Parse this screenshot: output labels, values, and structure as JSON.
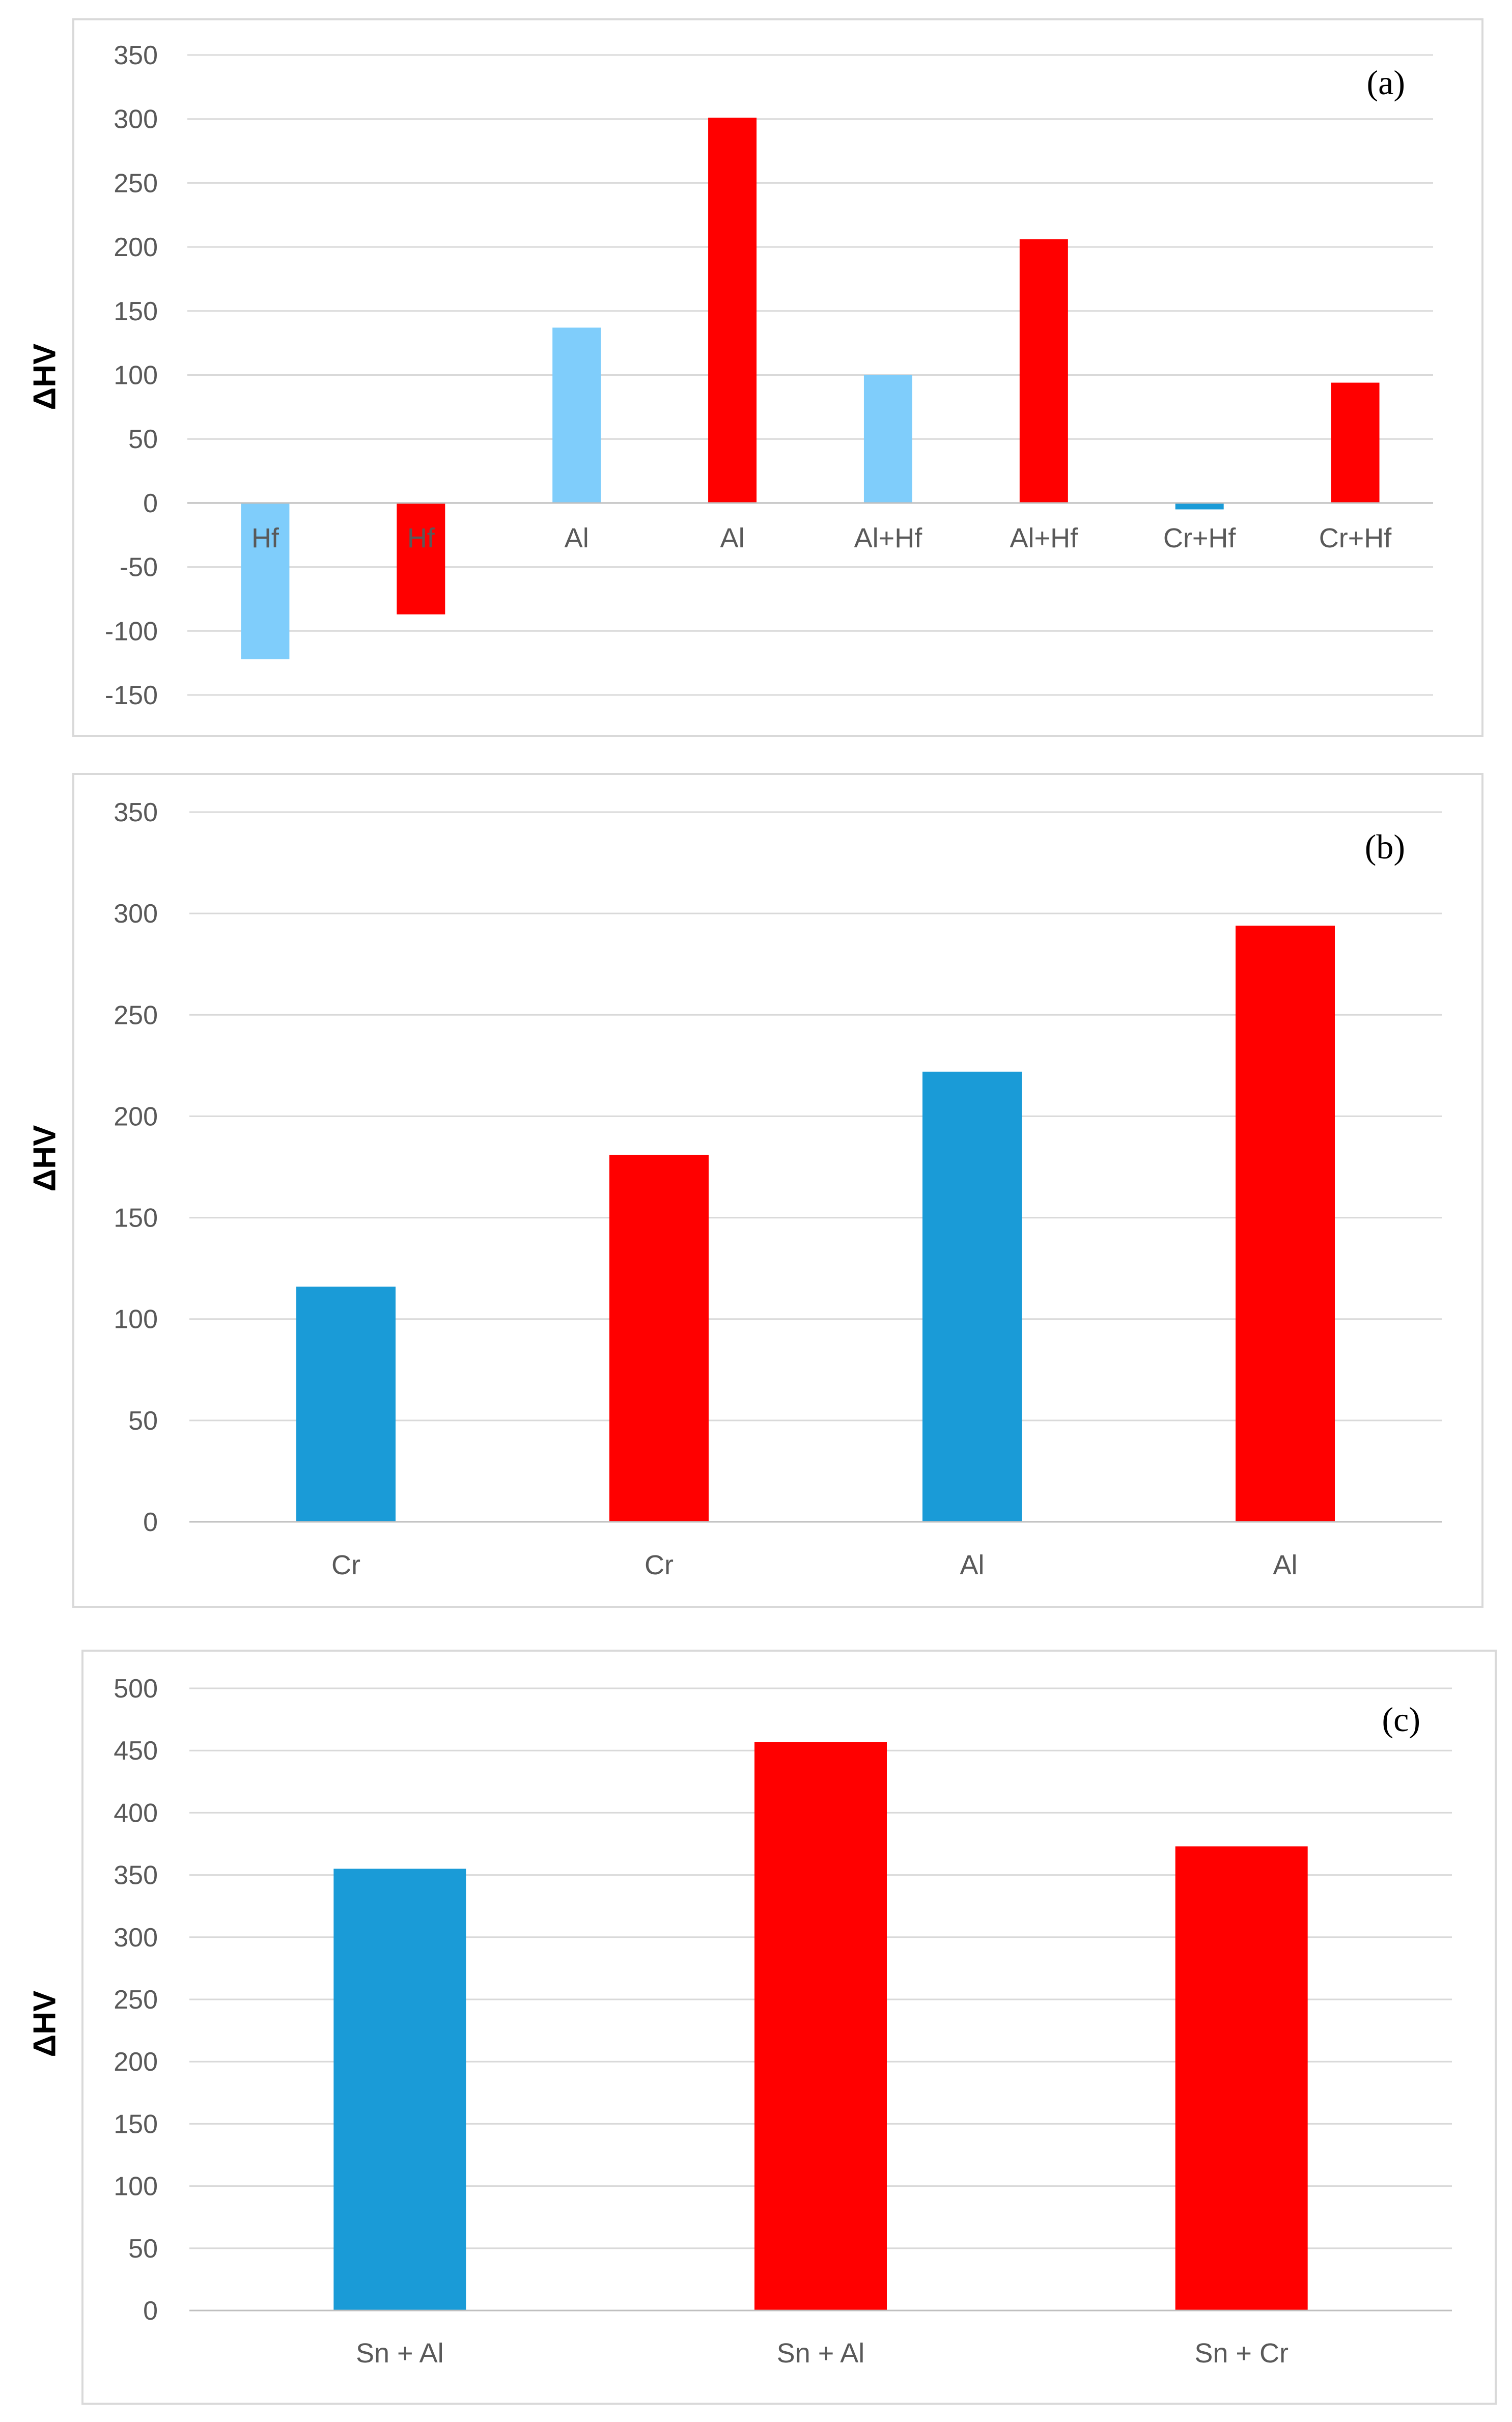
{
  "figure": {
    "ylabel": "ΔHV"
  },
  "chart_data": [
    {
      "type": "bar",
      "panel_tag": "(a)",
      "ylabel": "ΔHV",
      "ylim": [
        -150,
        350
      ],
      "yticks": [
        350,
        300,
        250,
        200,
        150,
        100,
        50,
        0,
        -50,
        -100,
        -150
      ],
      "categories": [
        "Hf",
        "Hf",
        "Al",
        "Al",
        "Al+Hf",
        "Al+Hf",
        "Cr+Hf",
        "Cr+Hf"
      ],
      "values": [
        -122,
        -87,
        137,
        301,
        100,
        206,
        -5,
        94
      ],
      "colors": [
        "#7fcdfb",
        "#ff0000",
        "#7fcdfb",
        "#ff0000",
        "#7fcdfb",
        "#ff0000",
        "#1a9bd7",
        "#ff0000"
      ],
      "grid": true
    },
    {
      "type": "bar",
      "panel_tag": "(b)",
      "ylabel": "ΔHV",
      "ylim": [
        0,
        350
      ],
      "yticks": [
        350,
        300,
        250,
        200,
        150,
        100,
        50,
        0
      ],
      "categories": [
        "Cr",
        "Cr",
        "Al",
        "Al"
      ],
      "values": [
        116,
        181,
        222,
        294
      ],
      "colors": [
        "#1a9bd7",
        "#ff0000",
        "#1a9bd7",
        "#ff0000"
      ],
      "grid": true
    },
    {
      "type": "bar",
      "panel_tag": "(c)",
      "ylabel": "ΔHV",
      "ylim": [
        0,
        500
      ],
      "yticks": [
        500,
        450,
        400,
        350,
        300,
        250,
        200,
        150,
        100,
        50,
        0
      ],
      "categories": [
        "Sn + Al",
        "Sn + Al",
        "Sn + Cr"
      ],
      "values": [
        355,
        457,
        373
      ],
      "colors": [
        "#1a9bd7",
        "#ff0000",
        "#ff0000"
      ],
      "grid": true
    }
  ]
}
